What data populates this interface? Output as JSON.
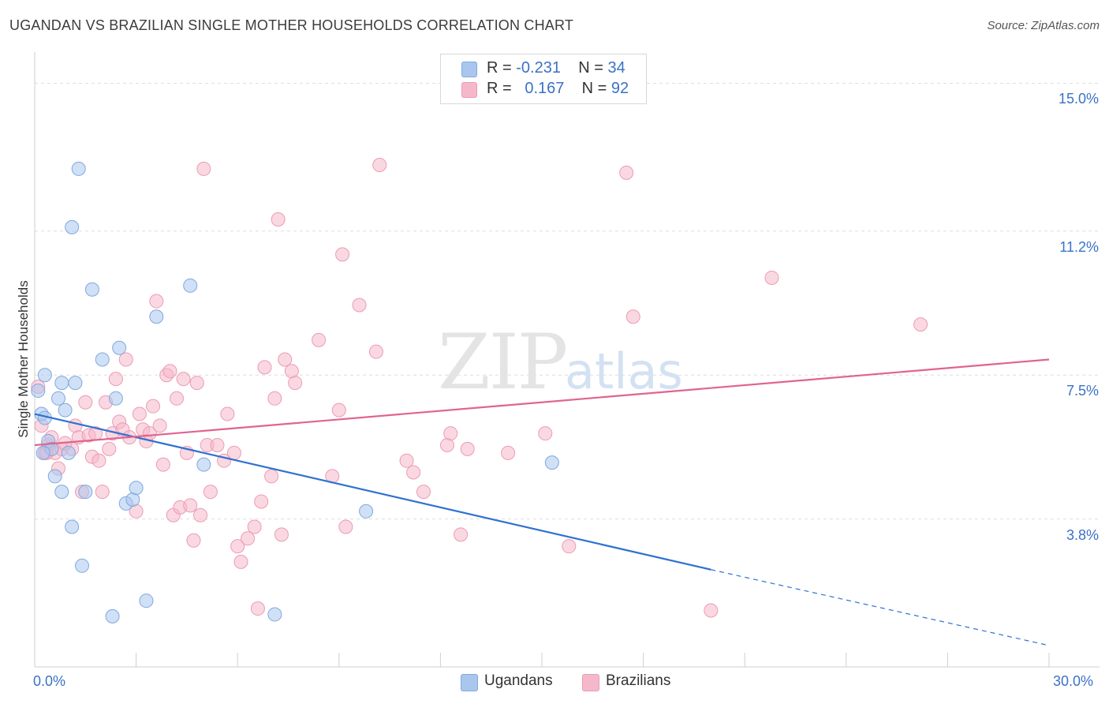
{
  "chart_data": {
    "type": "scatter",
    "title": "UGANDAN VS BRAZILIAN SINGLE MOTHER HOUSEHOLDS CORRELATION CHART",
    "source": "Source: ZipAtlas.com",
    "xlabel": "",
    "ylabel": "Single Mother Households",
    "xlim": [
      0,
      30
    ],
    "ylim": [
      0,
      15.8
    ],
    "x_tick_labels": [
      "0.0%",
      "30.0%"
    ],
    "y_ticks": [
      {
        "value": 3.8,
        "label": "3.8%"
      },
      {
        "value": 7.5,
        "label": "7.5%"
      },
      {
        "value": 11.2,
        "label": "11.2%"
      },
      {
        "value": 15.0,
        "label": "15.0%"
      }
    ],
    "watermark": "ZIPatlas",
    "series": [
      {
        "name": "Ugandans",
        "color": "#a9c6ef",
        "stroke": "#7fa9de",
        "line_color": "#2f72d0",
        "R": "-0.231",
        "N": "34",
        "trend": {
          "x0": 0.0,
          "y0": 6.5,
          "x1": 20.0,
          "y1": 2.5,
          "dash_x1": 30.0,
          "dash_y1": 0.55
        },
        "points": [
          [
            0.1,
            7.1
          ],
          [
            0.2,
            6.5
          ],
          [
            0.3,
            7.5
          ],
          [
            0.3,
            6.4
          ],
          [
            0.4,
            5.8
          ],
          [
            0.5,
            5.6
          ],
          [
            0.6,
            4.9
          ],
          [
            0.7,
            6.9
          ],
          [
            0.8,
            7.3
          ],
          [
            0.8,
            4.5
          ],
          [
            0.9,
            6.6
          ],
          [
            1.0,
            5.5
          ],
          [
            1.1,
            11.3
          ],
          [
            1.1,
            3.6
          ],
          [
            1.2,
            7.3
          ],
          [
            1.3,
            12.8
          ],
          [
            1.4,
            2.6
          ],
          [
            1.5,
            4.5
          ],
          [
            1.7,
            9.7
          ],
          [
            2.0,
            7.9
          ],
          [
            2.3,
            1.3
          ],
          [
            2.4,
            6.9
          ],
          [
            2.5,
            8.2
          ],
          [
            2.7,
            4.2
          ],
          [
            2.9,
            4.3
          ],
          [
            3.0,
            4.6
          ],
          [
            3.3,
            1.7
          ],
          [
            3.6,
            9.0
          ],
          [
            4.6,
            9.8
          ],
          [
            5.0,
            5.2
          ],
          [
            7.1,
            1.35
          ],
          [
            9.8,
            4.0
          ],
          [
            15.3,
            5.25
          ],
          [
            0.25,
            5.5
          ]
        ]
      },
      {
        "name": "Brazilians",
        "color": "#f5b8cb",
        "stroke": "#ec9bb5",
        "line_color": "#e0648e",
        "R": "0.167",
        "N": "92",
        "trend": {
          "x0": 0.0,
          "y0": 5.7,
          "x1": 30.0,
          "y1": 7.9
        },
        "points": [
          [
            0.1,
            7.2
          ],
          [
            0.2,
            6.2
          ],
          [
            0.3,
            5.5
          ],
          [
            0.4,
            5.7
          ],
          [
            0.5,
            5.9
          ],
          [
            0.6,
            5.5
          ],
          [
            0.7,
            5.1
          ],
          [
            0.8,
            5.6
          ],
          [
            1.1,
            5.6
          ],
          [
            1.2,
            6.2
          ],
          [
            1.3,
            5.9
          ],
          [
            1.4,
            4.5
          ],
          [
            1.5,
            6.8
          ],
          [
            1.6,
            5.95
          ],
          [
            1.7,
            5.4
          ],
          [
            1.8,
            6.0
          ],
          [
            1.9,
            5.3
          ],
          [
            2.0,
            4.5
          ],
          [
            2.1,
            6.8
          ],
          [
            2.2,
            5.6
          ],
          [
            2.3,
            6.0
          ],
          [
            2.4,
            7.4
          ],
          [
            2.5,
            6.3
          ],
          [
            2.6,
            6.1
          ],
          [
            2.7,
            7.9
          ],
          [
            2.8,
            5.9
          ],
          [
            3.0,
            4.0
          ],
          [
            3.1,
            6.5
          ],
          [
            3.2,
            6.1
          ],
          [
            3.3,
            5.8
          ],
          [
            3.4,
            6.0
          ],
          [
            3.5,
            6.7
          ],
          [
            3.6,
            9.4
          ],
          [
            3.7,
            6.2
          ],
          [
            3.8,
            5.2
          ],
          [
            3.9,
            7.5
          ],
          [
            4.0,
            7.6
          ],
          [
            4.1,
            3.9
          ],
          [
            4.2,
            6.9
          ],
          [
            4.3,
            4.1
          ],
          [
            4.4,
            7.4
          ],
          [
            4.5,
            5.5
          ],
          [
            4.6,
            4.15
          ],
          [
            4.7,
            3.25
          ],
          [
            4.8,
            7.3
          ],
          [
            4.9,
            3.9
          ],
          [
            5.0,
            12.8
          ],
          [
            5.1,
            5.7
          ],
          [
            5.2,
            4.5
          ],
          [
            5.4,
            5.7
          ],
          [
            5.6,
            5.3
          ],
          [
            5.7,
            6.5
          ],
          [
            5.9,
            5.5
          ],
          [
            6.0,
            3.1
          ],
          [
            6.1,
            2.7
          ],
          [
            6.3,
            3.3
          ],
          [
            6.5,
            3.6
          ],
          [
            6.6,
            1.5
          ],
          [
            6.7,
            4.25
          ],
          [
            6.8,
            7.7
          ],
          [
            7.0,
            4.9
          ],
          [
            7.1,
            6.9
          ],
          [
            7.2,
            11.5
          ],
          [
            7.3,
            3.4
          ],
          [
            7.4,
            7.9
          ],
          [
            7.6,
            7.6
          ],
          [
            7.7,
            7.3
          ],
          [
            8.4,
            8.4
          ],
          [
            8.8,
            4.9
          ],
          [
            9.0,
            6.6
          ],
          [
            9.1,
            10.6
          ],
          [
            9.2,
            3.6
          ],
          [
            9.6,
            9.3
          ],
          [
            10.1,
            8.1
          ],
          [
            10.2,
            12.9
          ],
          [
            11.0,
            5.3
          ],
          [
            11.2,
            5.0
          ],
          [
            11.5,
            4.5
          ],
          [
            12.2,
            5.7
          ],
          [
            12.3,
            6.0
          ],
          [
            12.6,
            3.4
          ],
          [
            12.8,
            5.6
          ],
          [
            14.0,
            5.5
          ],
          [
            15.1,
            6.0
          ],
          [
            15.8,
            3.1
          ],
          [
            17.5,
            12.7
          ],
          [
            17.7,
            9.0
          ],
          [
            20.0,
            1.45
          ],
          [
            21.8,
            10.0
          ],
          [
            26.2,
            8.8
          ],
          [
            0.35,
            5.5
          ],
          [
            0.9,
            5.75
          ]
        ]
      }
    ]
  },
  "legend_top": {
    "rows": [
      {
        "r_label": "R = ",
        "r_value": "-0.231",
        "n_label": "N = ",
        "n_value": "34"
      },
      {
        "r_label": "R = ",
        "r_value": "0.167",
        "n_label": "N = ",
        "n_value": "92"
      }
    ]
  },
  "legend_bottom": {
    "items": [
      "Ugandans",
      "Brazilians"
    ]
  }
}
